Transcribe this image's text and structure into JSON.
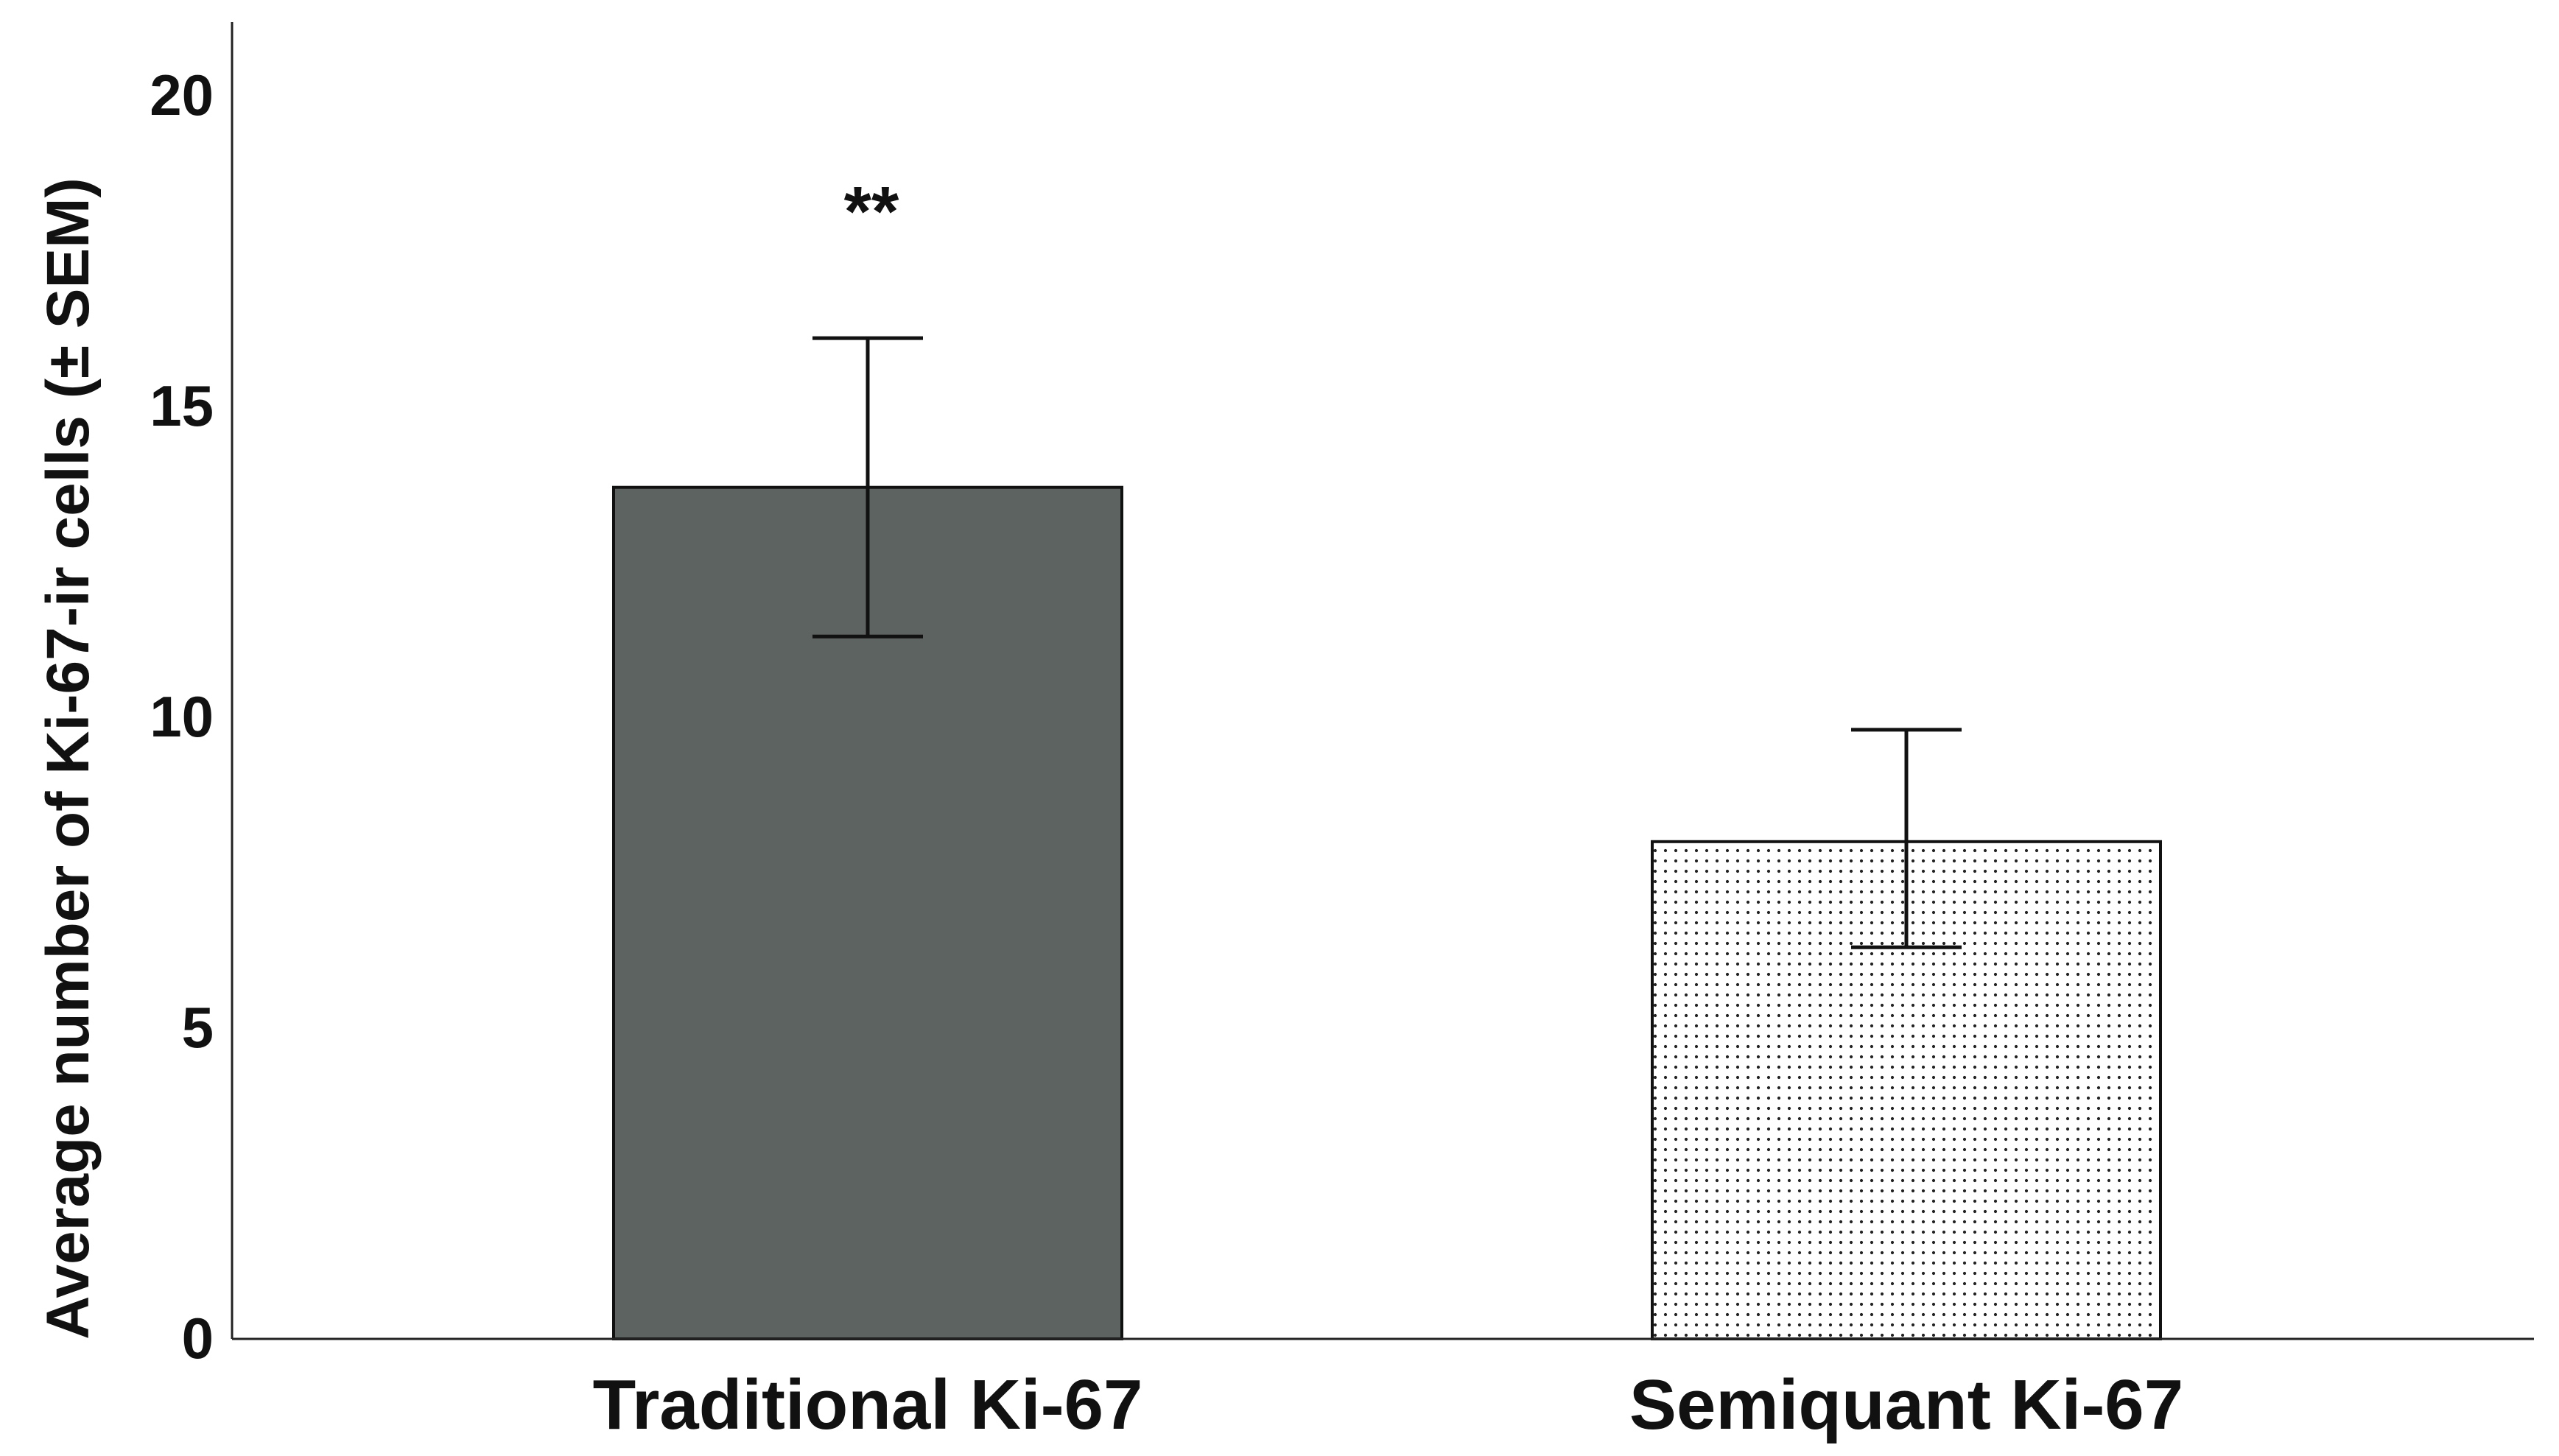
{
  "chart_data": {
    "type": "bar",
    "title": "",
    "xlabel": "",
    "ylabel": "Average number of Ki-67-ir cells (± SEM)",
    "ylim": [
      0,
      20
    ],
    "yticks": [
      0,
      5,
      10,
      15,
      20
    ],
    "grid": false,
    "categories": [
      "Traditional Ki-67",
      "Semiquant Ki-67"
    ],
    "values": [
      13.7,
      8.0
    ],
    "error_low": [
      11.3,
      6.3
    ],
    "error_high": [
      16.1,
      9.8
    ],
    "bar_styles": [
      {
        "fill": "#5c6360",
        "pattern": "solid"
      },
      {
        "fill": "#ffffff",
        "pattern": "dots"
      }
    ],
    "annotations": [
      {
        "category": "Traditional Ki-67",
        "text": "**"
      }
    ]
  }
}
